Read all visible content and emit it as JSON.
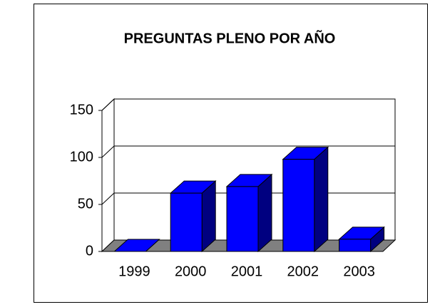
{
  "chart_data": {
    "type": "bar3d",
    "title": "PREGUNTAS PLENO POR AÑO",
    "categories": [
      "1999",
      "2000",
      "2001",
      "2002",
      "2003"
    ],
    "values": [
      0,
      62,
      69,
      98,
      13
    ],
    "color": "#0000ff",
    "side_color": "#000080",
    "floor_color": "#808080",
    "ylim": [
      0,
      150
    ],
    "yticks": [
      0,
      50,
      100,
      150
    ],
    "grid": true
  }
}
